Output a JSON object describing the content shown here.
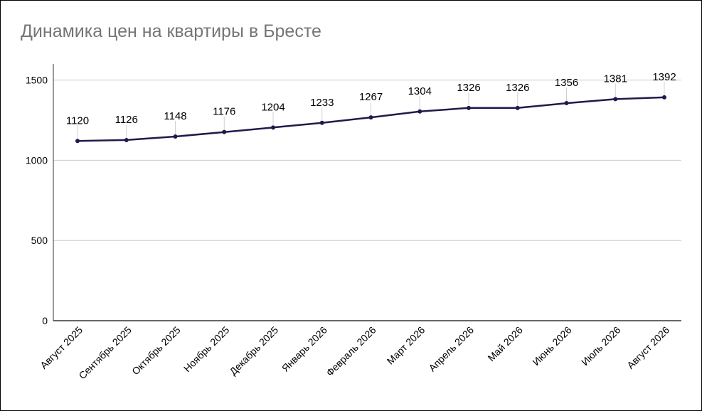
{
  "chart_data": {
    "type": "line",
    "title": "Динамика цен на квартиры в Бресте",
    "categories": [
      "Август 2025",
      "Сентябрь 2025",
      "Октябрь 2025",
      "Ноябрь 2025",
      "Декабрь 2025",
      "Январь 2026",
      "Февраль 2026",
      "Март 2026",
      "Апрель 2026",
      "Май 2026",
      "Июнь 2026",
      "Июль 2026",
      "Август 2026"
    ],
    "series": [
      {
        "values": [
          1120,
          1126,
          1148,
          1176,
          1204,
          1233,
          1267,
          1304,
          1326,
          1326,
          1356,
          1381,
          1392
        ],
        "color": "#1e1b4b"
      }
    ],
    "data_labels": [
      "1120",
      "1126",
      "1148",
      "1176",
      "1204",
      "1233",
      "1267",
      "1304",
      "1326",
      "1326",
      "1356",
      "1381",
      "1392"
    ],
    "yticks": [
      "0",
      "500",
      "1000",
      "1500"
    ],
    "ytick_values": [
      0,
      500,
      1000,
      1500
    ],
    "ylim": [
      0,
      1600
    ],
    "grid": true,
    "legend": "none"
  }
}
